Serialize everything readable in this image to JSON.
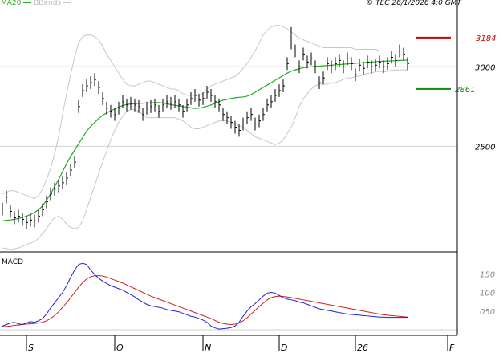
{
  "legend": {
    "ma_label": "MA20",
    "bb_label": "BBands"
  },
  "copyright": "© TEC 26/1/2026 4:0 GMT",
  "macd_label": "MACD",
  "colors": {
    "ma": "#22aa22",
    "bbands": "#c8c8c8",
    "price": "#000000",
    "macd": "#2222cc",
    "signal": "#cc2222",
    "resistance": "#cc0000",
    "support": "#118811",
    "grid": "#d0d0d0",
    "axis": "#000000"
  },
  "price_panel": {
    "y_ticks": [
      {
        "value": 3000,
        "label": "3000"
      },
      {
        "value": 2500,
        "label": "2500"
      }
    ],
    "resistance": {
      "value": 3184,
      "label": "3184"
    },
    "support": {
      "value": 2861,
      "label": "2861"
    }
  },
  "macd_panel": {
    "y_ticks": [
      {
        "value": 150,
        "label": "150"
      },
      {
        "value": 100,
        "label": "100"
      },
      {
        "value": 50,
        "label": "050"
      }
    ]
  },
  "x_ticks": [
    {
      "index": 6,
      "label": "S"
    },
    {
      "index": 28,
      "label": "O"
    },
    {
      "index": 50,
      "label": "N"
    },
    {
      "index": 69,
      "label": "D"
    },
    {
      "index": 88,
      "label": "26"
    },
    {
      "index": 111,
      "label": "F"
    }
  ],
  "chart_data": {
    "type": "line",
    "subtype": "ohlc-with-indicators",
    "series_count": 102,
    "close": [
      2105,
      2180,
      2090,
      2050,
      2060,
      2040,
      2020,
      2035,
      2030,
      2060,
      2100,
      2150,
      2200,
      2230,
      2250,
      2270,
      2300,
      2350,
      2400,
      2750,
      2850,
      2880,
      2900,
      2920,
      2870,
      2800,
      2740,
      2720,
      2700,
      2740,
      2780,
      2760,
      2770,
      2760,
      2750,
      2700,
      2740,
      2750,
      2760,
      2720,
      2760,
      2780,
      2770,
      2780,
      2760,
      2720,
      2760,
      2800,
      2820,
      2790,
      2800,
      2840,
      2820,
      2780,
      2760,
      2700,
      2680,
      2650,
      2620,
      2600,
      2640,
      2680,
      2700,
      2640,
      2660,
      2700,
      2760,
      2780,
      2820,
      2850,
      2880,
      3020,
      3150,
      3100,
      3000,
      3080,
      3030,
      3050,
      3000,
      2900,
      2930,
      3020,
      3000,
      3020,
      3040,
      3000,
      3050,
      3020,
      2950,
      3010,
      2990,
      3030,
      3000,
      3010,
      3030,
      3000,
      3020,
      3060,
      3040,
      3100,
      3080,
      3020
    ],
    "high": [
      2145,
      2220,
      2130,
      2090,
      2100,
      2080,
      2060,
      2075,
      2070,
      2100,
      2140,
      2190,
      2240,
      2270,
      2290,
      2310,
      2340,
      2390,
      2440,
      2790,
      2890,
      2920,
      2940,
      2960,
      2910,
      2840,
      2780,
      2760,
      2740,
      2780,
      2820,
      2800,
      2810,
      2800,
      2790,
      2740,
      2780,
      2790,
      2800,
      2760,
      2800,
      2820,
      2810,
      2820,
      2800,
      2760,
      2800,
      2840,
      2860,
      2830,
      2840,
      2880,
      2860,
      2820,
      2800,
      2740,
      2720,
      2690,
      2660,
      2640,
      2680,
      2720,
      2740,
      2680,
      2700,
      2740,
      2800,
      2820,
      2860,
      2890,
      2920,
      3060,
      3250,
      3140,
      3040,
      3120,
      3070,
      3090,
      3040,
      2940,
      2970,
      3060,
      3040,
      3060,
      3080,
      3040,
      3090,
      3060,
      2990,
      3050,
      3030,
      3070,
      3040,
      3050,
      3070,
      3040,
      3060,
      3100,
      3080,
      3140,
      3120,
      3060
    ],
    "low": [
      2065,
      2140,
      2050,
      2010,
      2020,
      2000,
      1980,
      1995,
      1990,
      2020,
      2060,
      2110,
      2160,
      2190,
      2210,
      2230,
      2260,
      2310,
      2360,
      2710,
      2810,
      2840,
      2860,
      2880,
      2830,
      2760,
      2700,
      2680,
      2660,
      2700,
      2740,
      2720,
      2730,
      2720,
      2710,
      2660,
      2700,
      2710,
      2720,
      2680,
      2720,
      2740,
      2730,
      2740,
      2720,
      2680,
      2720,
      2760,
      2780,
      2750,
      2760,
      2800,
      2780,
      2740,
      2720,
      2660,
      2640,
      2610,
      2580,
      2560,
      2600,
      2640,
      2660,
      2600,
      2620,
      2660,
      2720,
      2740,
      2780,
      2810,
      2840,
      2980,
      3110,
      3060,
      2960,
      3040,
      2990,
      3010,
      2960,
      2860,
      2890,
      2980,
      2960,
      2980,
      3000,
      2960,
      3010,
      2980,
      2910,
      2970,
      2950,
      2990,
      2960,
      2970,
      2990,
      2960,
      2980,
      3020,
      3000,
      3060,
      3040,
      2980
    ],
    "ma20": [
      2030,
      2033,
      2036,
      2040,
      2045,
      2052,
      2060,
      2070,
      2083,
      2100,
      2125,
      2160,
      2200,
      2245,
      2290,
      2340,
      2390,
      2435,
      2475,
      2515,
      2555,
      2595,
      2625,
      2650,
      2675,
      2695,
      2710,
      2723,
      2735,
      2746,
      2756,
      2763,
      2766,
      2768,
      2770,
      2771,
      2772,
      2773,
      2774,
      2775,
      2772,
      2768,
      2762,
      2758,
      2754,
      2750,
      2746,
      2742,
      2738,
      2740,
      2745,
      2752,
      2760,
      2770,
      2780,
      2790,
      2795,
      2800,
      2805,
      2808,
      2810,
      2815,
      2825,
      2840,
      2855,
      2870,
      2885,
      2900,
      2915,
      2930,
      2945,
      2960,
      2972,
      2980,
      2988,
      2994,
      2998,
      3000,
      3002,
      3004,
      3006,
      3008,
      3010,
      3012,
      3014,
      3016,
      3018,
      3020,
      3022,
      3024,
      3026,
      3028,
      3030,
      3032,
      3034,
      3035,
      3036,
      3037,
      3038,
      3040,
      3041,
      3042
    ],
    "bb_upper": [
      2200,
      2210,
      2220,
      2220,
      2210,
      2200,
      2190,
      2180,
      2170,
      2190,
      2230,
      2290,
      2360,
      2450,
      2560,
      2700,
      2830,
      2950,
      3060,
      3150,
      3190,
      3200,
      3200,
      3190,
      3170,
      3130,
      3080,
      3040,
      3000,
      2960,
      2920,
      2890,
      2880,
      2880,
      2890,
      2900,
      2910,
      2910,
      2900,
      2890,
      2880,
      2870,
      2860,
      2860,
      2850,
      2830,
      2820,
      2820,
      2820,
      2820,
      2830,
      2860,
      2880,
      2890,
      2900,
      2910,
      2920,
      2930,
      2940,
      2960,
      2990,
      3020,
      3060,
      3100,
      3150,
      3200,
      3230,
      3250,
      3260,
      3260,
      3250,
      3240,
      3220,
      3200,
      3180,
      3170,
      3160,
      3150,
      3140,
      3130,
      3120,
      3120,
      3120,
      3120,
      3120,
      3120,
      3120,
      3120,
      3110,
      3110,
      3110,
      3110,
      3110,
      3110,
      3100,
      3100,
      3100,
      3100,
      3100,
      3100,
      3100,
      3100
    ],
    "bb_lower": [
      1860,
      1855,
      1850,
      1855,
      1860,
      1870,
      1880,
      1890,
      1900,
      1920,
      1950,
      1980,
      2020,
      2050,
      2060,
      2040,
      2010,
      1990,
      1980,
      1990,
      2030,
      2100,
      2180,
      2250,
      2330,
      2400,
      2470,
      2540,
      2600,
      2650,
      2690,
      2720,
      2730,
      2730,
      2720,
      2700,
      2680,
      2680,
      2680,
      2680,
      2680,
      2680,
      2680,
      2680,
      2670,
      2660,
      2640,
      2620,
      2610,
      2610,
      2620,
      2630,
      2640,
      2650,
      2660,
      2660,
      2660,
      2650,
      2640,
      2630,
      2620,
      2600,
      2580,
      2560,
      2550,
      2540,
      2530,
      2520,
      2510,
      2520,
      2540,
      2580,
      2620,
      2680,
      2750,
      2800,
      2830,
      2860,
      2880,
      2890,
      2890,
      2890,
      2900,
      2900,
      2910,
      2920,
      2930,
      2930,
      2940,
      2940,
      2950,
      2960,
      2960,
      2970,
      2970,
      2970,
      2970,
      2980,
      2980,
      2980,
      2980,
      2980
    ],
    "macd": [
      10,
      14,
      18,
      20,
      16,
      14,
      18,
      22,
      20,
      24,
      30,
      42,
      58,
      72,
      86,
      100,
      118,
      140,
      160,
      175,
      178,
      175,
      160,
      148,
      138,
      130,
      124,
      118,
      114,
      110,
      106,
      100,
      94,
      88,
      80,
      74,
      68,
      64,
      62,
      60,
      58,
      54,
      52,
      50,
      48,
      44,
      40,
      36,
      34,
      30,
      26,
      20,
      10,
      5,
      2,
      3,
      4,
      6,
      10,
      20,
      36,
      50,
      62,
      70,
      80,
      90,
      98,
      100,
      98,
      92,
      86,
      82,
      80,
      78,
      74,
      72,
      68,
      64,
      60,
      56,
      54,
      52,
      50,
      48,
      46,
      44,
      42,
      41,
      40,
      39,
      38,
      37,
      36,
      35,
      34,
      34,
      33,
      33,
      33,
      33,
      33,
      33
    ],
    "signal": [
      8,
      9,
      10,
      12,
      13,
      14,
      15,
      16,
      17,
      18,
      20,
      24,
      30,
      38,
      48,
      60,
      72,
      86,
      100,
      114,
      126,
      136,
      142,
      145,
      145,
      144,
      141,
      137,
      133,
      129,
      125,
      120,
      115,
      110,
      105,
      100,
      95,
      90,
      86,
      82,
      78,
      74,
      70,
      66,
      62,
      58,
      54,
      50,
      46,
      42,
      38,
      34,
      30,
      25,
      20,
      17,
      15,
      14,
      15,
      18,
      24,
      32,
      42,
      52,
      62,
      71,
      80,
      86,
      89,
      90,
      89,
      88,
      86,
      84,
      82,
      80,
      78,
      76,
      74,
      72,
      70,
      68,
      66,
      64,
      62,
      60,
      58,
      56,
      54,
      52,
      50,
      48,
      46,
      44,
      42,
      40,
      39,
      38,
      37,
      36,
      35,
      34
    ],
    "price_range": [
      1840,
      3360
    ],
    "macd_range": [
      -15,
      200
    ]
  }
}
